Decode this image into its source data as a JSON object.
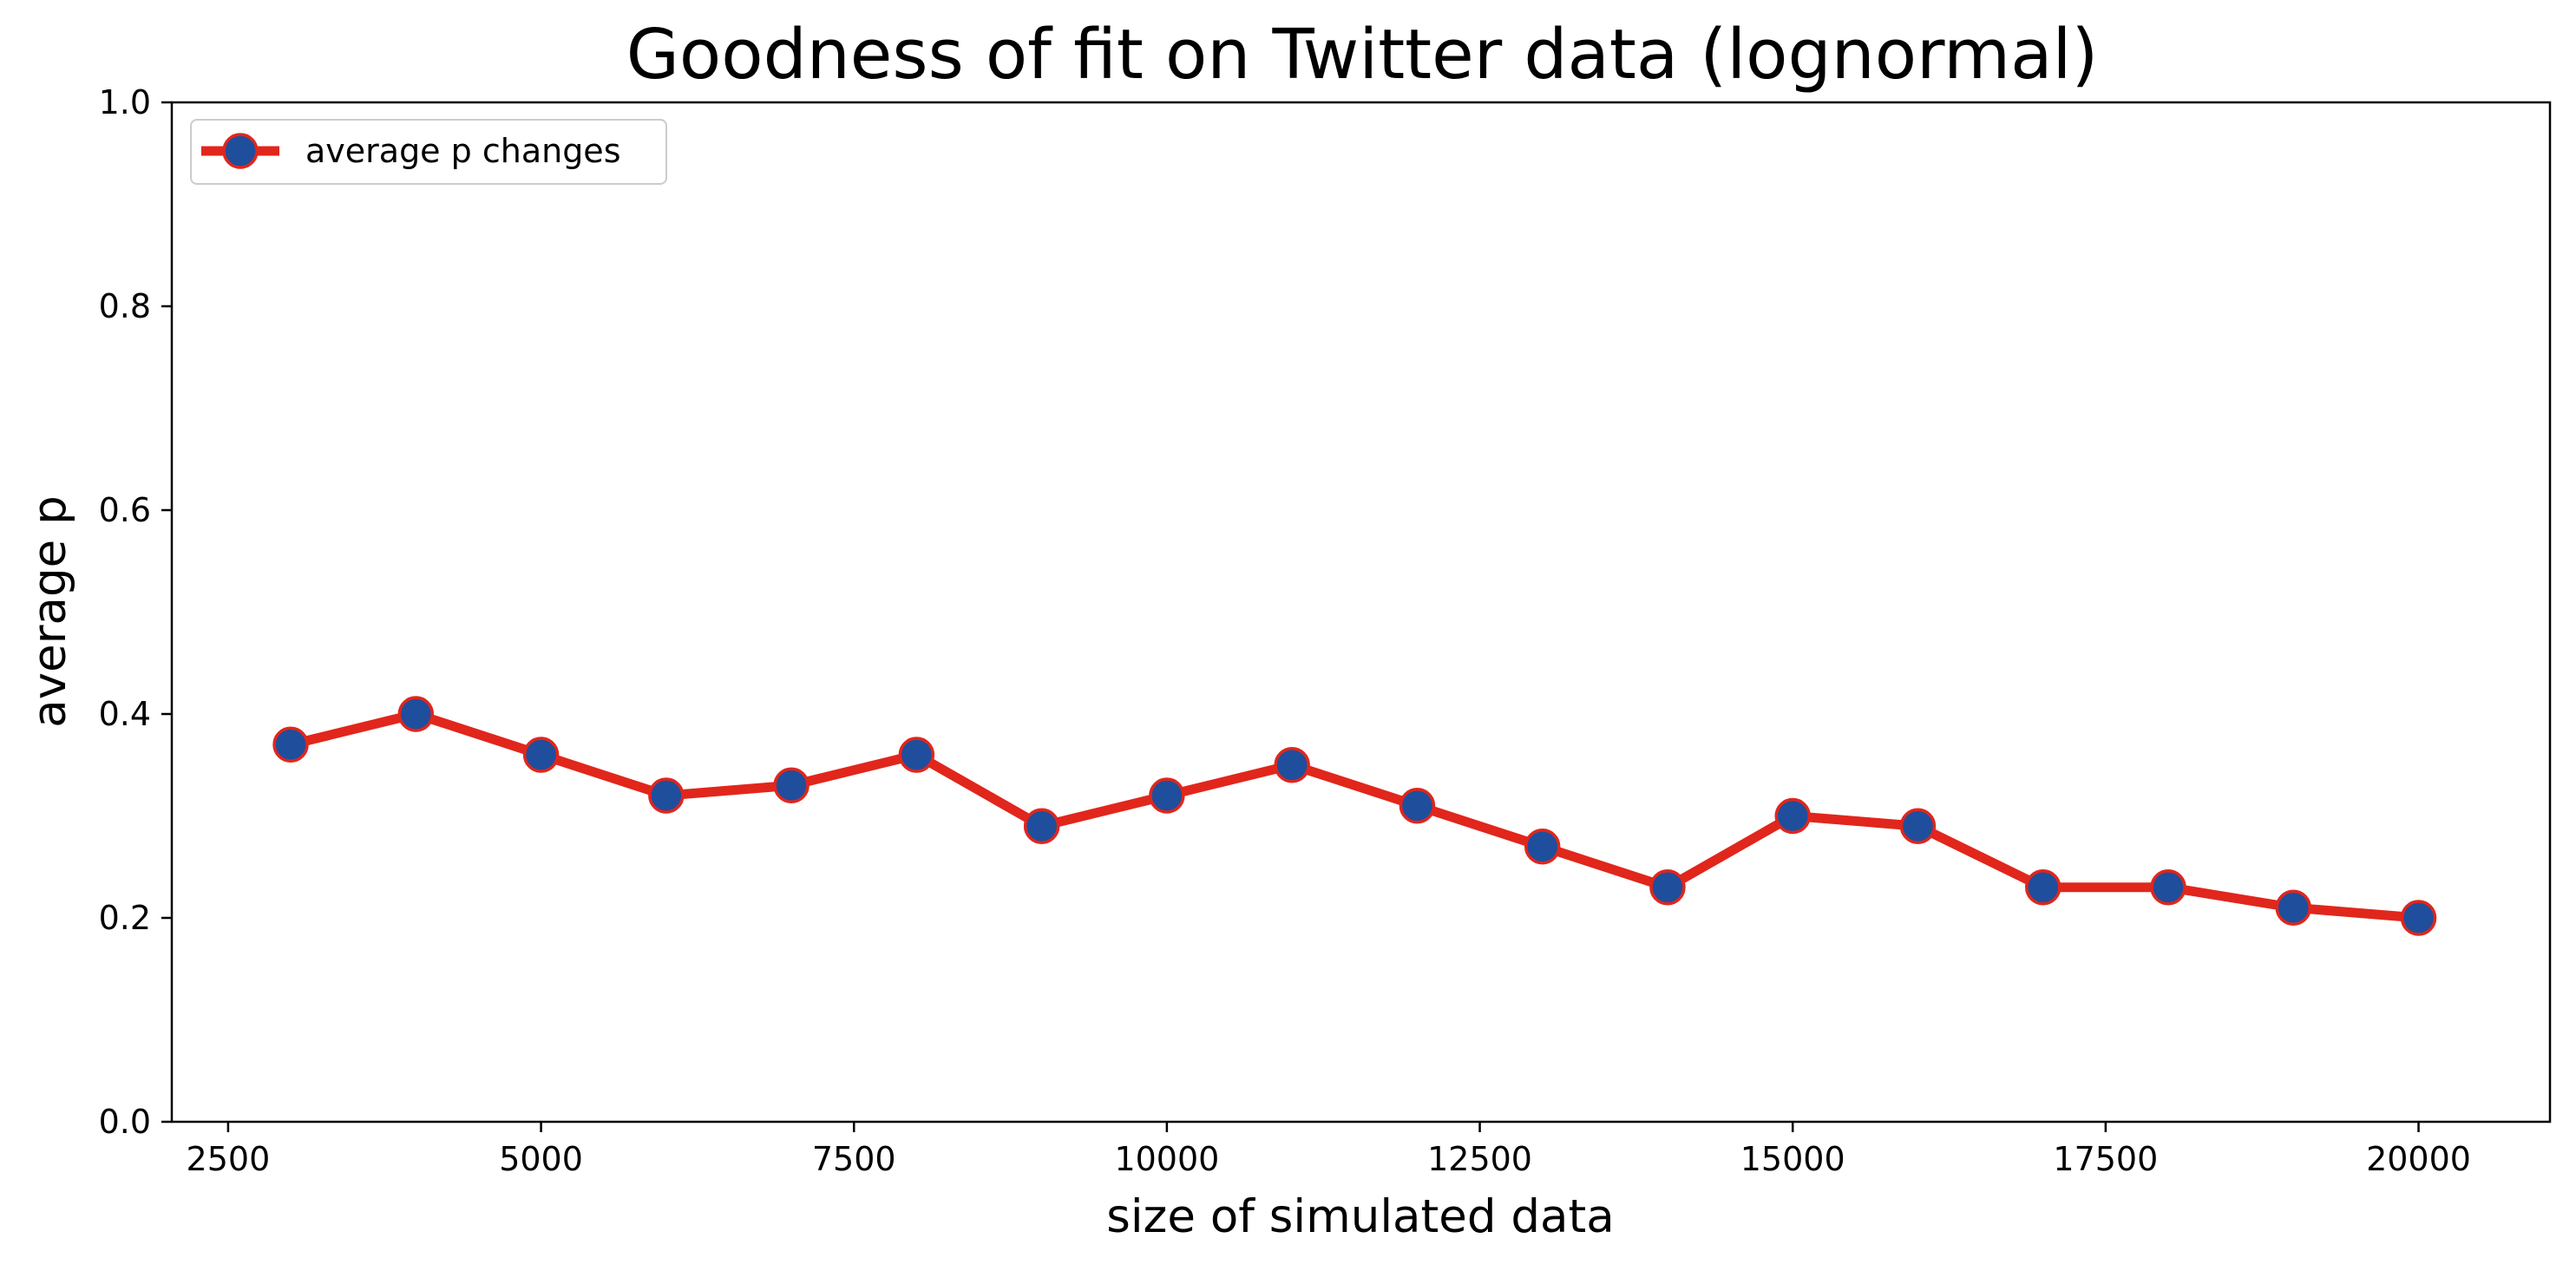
{
  "chart_data": {
    "type": "line",
    "title": "Goodness of fit on Twitter data (lognormal)",
    "xlabel": "size of simulated data",
    "ylabel": "average p",
    "xlim": [
      2050,
      21050
    ],
    "ylim": [
      0.0,
      1.0
    ],
    "xticks": [
      2500,
      5000,
      7500,
      10000,
      12500,
      15000,
      17500,
      20000
    ],
    "yticks": [
      0.0,
      0.2,
      0.4,
      0.6,
      0.8,
      1.0
    ],
    "grid": false,
    "legend_position": "upper-left",
    "series": [
      {
        "name": "average p changes",
        "line_color": "#e1261c",
        "marker_color": "#1f4e9c",
        "x": [
          3000,
          4000,
          5000,
          6000,
          7000,
          8000,
          9000,
          10000,
          11000,
          12000,
          13000,
          14000,
          15000,
          16000,
          17000,
          18000,
          19000,
          20000
        ],
        "y": [
          0.37,
          0.4,
          0.36,
          0.32,
          0.33,
          0.36,
          0.29,
          0.32,
          0.35,
          0.31,
          0.27,
          0.23,
          0.3,
          0.29,
          0.23,
          0.23,
          0.21,
          0.2
        ]
      }
    ]
  }
}
